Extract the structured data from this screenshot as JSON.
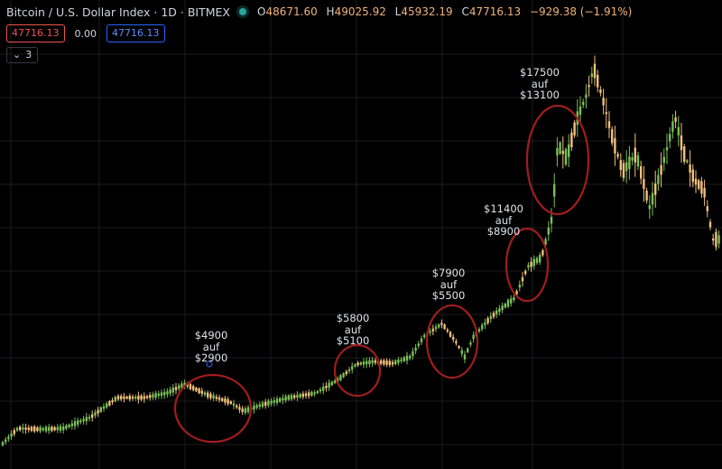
{
  "header": {
    "title": "Bitcoin / U.S. Dollar Index · 1D · BITMEX",
    "o_label": "O",
    "o": "48671.60",
    "h_label": "H",
    "h": "49025.92",
    "l_label": "L",
    "l": "45932.19",
    "c_label": "C",
    "c": "47716.13",
    "change": "−929.38 (−1.91%)"
  },
  "bid": "47716.13",
  "spread": "0.00",
  "ask": "47716.13",
  "indicators_toggle": {
    "icon": "chevron-down-icon",
    "count": "3"
  },
  "annotations": [
    {
      "lines": [
        "$4900",
        "auf",
        "$2900"
      ]
    },
    {
      "lines": [
        "$5800",
        "auf",
        "$5100"
      ]
    },
    {
      "lines": [
        "$7900",
        "auf",
        "$5500"
      ]
    },
    {
      "lines": [
        "$11400",
        "auf",
        "$8900"
      ]
    },
    {
      "lines": [
        "$17500",
        "auf",
        "$13100"
      ]
    }
  ],
  "colors": {
    "up": "#7bbf58",
    "down": "#f3c07c",
    "circle": "#a11d1d",
    "grid": "#1b1c21",
    "bid_border": "#ef5350",
    "ask_border": "#2962ff"
  }
}
